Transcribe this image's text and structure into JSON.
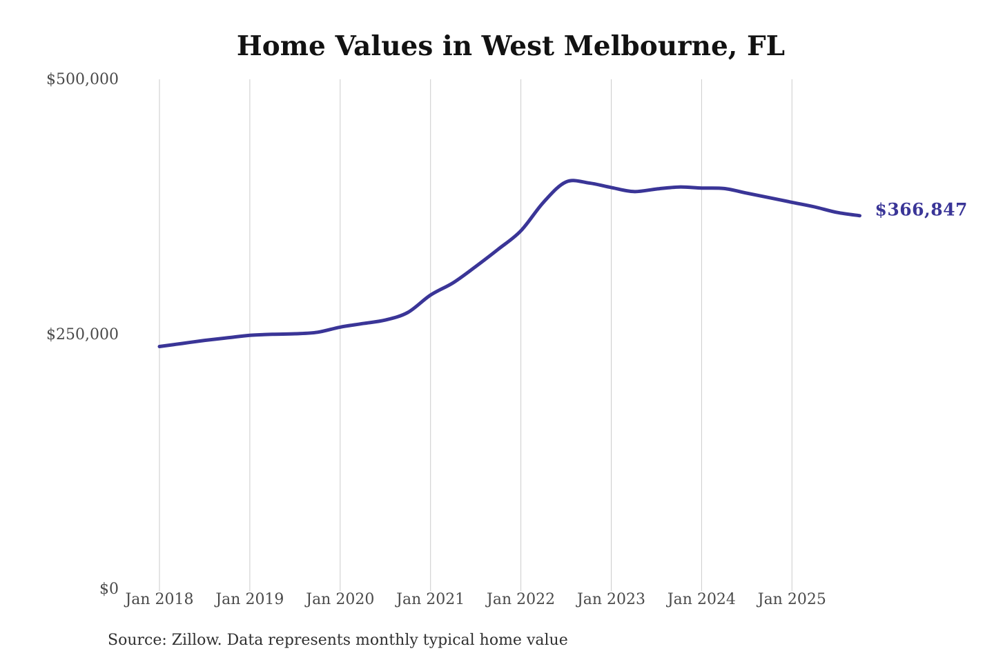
{
  "source_note": "Source: Zillow. Data represents monthly typical home value",
  "chart_data": {
    "type": "line",
    "title": "Home Values in West Melbourne, FL",
    "series_name": "Monthly typical home value",
    "x": [
      "2018-01",
      "2018-04",
      "2018-07",
      "2018-10",
      "2019-01",
      "2019-04",
      "2019-07",
      "2019-10",
      "2020-01",
      "2020-04",
      "2020-07",
      "2020-10",
      "2021-01",
      "2021-04",
      "2021-07",
      "2021-10",
      "2022-01",
      "2022-04",
      "2022-07",
      "2022-10",
      "2023-01",
      "2023-04",
      "2023-07",
      "2023-10",
      "2024-01",
      "2024-04",
      "2024-07",
      "2024-10",
      "2025-01",
      "2025-04",
      "2025-07",
      "2025-10"
    ],
    "values": [
      238500,
      241500,
      244500,
      247000,
      249500,
      250500,
      251000,
      252500,
      257500,
      261000,
      264500,
      272000,
      289000,
      301000,
      317000,
      334000,
      352000,
      380000,
      400000,
      399000,
      394500,
      390500,
      393000,
      395000,
      394000,
      393500,
      389000,
      384500,
      380000,
      375500,
      370000,
      366847
    ],
    "end_label": "$366,847",
    "y_tick_labels": [
      "$500,000",
      "$250,000",
      "$0"
    ],
    "y_tick_values": [
      500000,
      250000,
      0
    ],
    "x_tick_labels": [
      "Jan 2018",
      "Jan 2019",
      "Jan 2020",
      "Jan 2021",
      "Jan 2022",
      "Jan 2023",
      "Jan 2024",
      "Jan 2025"
    ],
    "ylim": [
      0,
      500000
    ],
    "grid": "vertical-only",
    "legend": "none",
    "line_color": "#3a3597",
    "grid_color": "#cbcbcb",
    "background_color": "#ffffff"
  }
}
